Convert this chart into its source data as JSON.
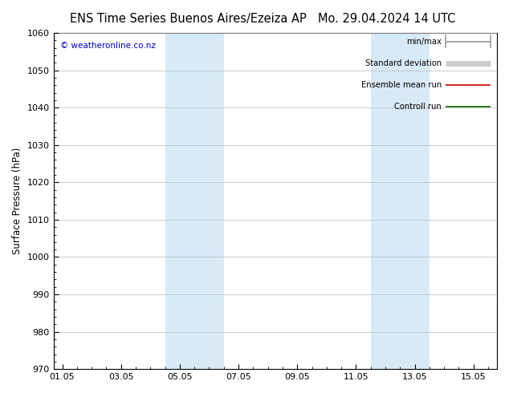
{
  "title_left": "ENS Time Series Buenos Aires/Ezeiza AP",
  "title_right": "Mo. 29.04.2024 14 UTC",
  "ylabel": "Surface Pressure (hPa)",
  "ylim": [
    970,
    1060
  ],
  "yticks": [
    970,
    980,
    990,
    1000,
    1010,
    1020,
    1030,
    1040,
    1050,
    1060
  ],
  "xtick_labels": [
    "01.05",
    "03.05",
    "05.05",
    "07.05",
    "09.05",
    "11.05",
    "13.05",
    "15.05"
  ],
  "xtick_positions": [
    0,
    2,
    4,
    6,
    8,
    10,
    12,
    14
  ],
  "xlim": [
    -0.3,
    14.8
  ],
  "shaded_bands": [
    {
      "xmin": 3.5,
      "xmax": 5.5
    },
    {
      "xmin": 10.5,
      "xmax": 12.5
    }
  ],
  "shade_color": "#d8eaf8",
  "background_color": "#ffffff",
  "plot_bg_color": "#ffffff",
  "copyright_text": "© weatheronline.co.nz",
  "copyright_color": "#0000cc",
  "legend_items": [
    {
      "label": "min/max",
      "color": "#999999",
      "lw": 1.2,
      "style": "minmax"
    },
    {
      "label": "Standard deviation",
      "color": "#cccccc",
      "lw": 5,
      "style": "thick"
    },
    {
      "label": "Ensemble mean run",
      "color": "#cc0000",
      "lw": 1.2,
      "style": "line"
    },
    {
      "label": "Controll run",
      "color": "#006600",
      "lw": 1.2,
      "style": "line"
    }
  ],
  "grid_color": "#bbbbbb",
  "title_fontsize": 10.5,
  "axis_label_fontsize": 8.5,
  "tick_label_fontsize": 8
}
